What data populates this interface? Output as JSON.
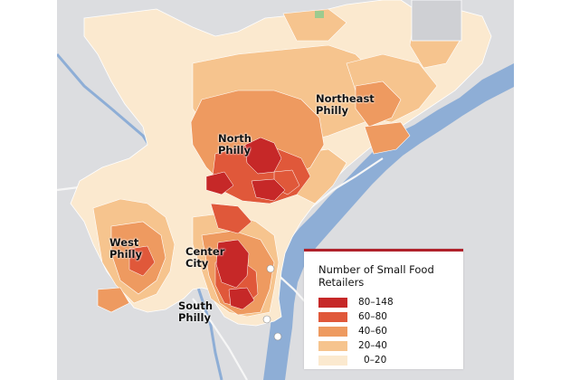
{
  "map": {
    "labels": {
      "north": "North\nPhilly",
      "northeast": "Northeast\nPhilly",
      "west": "West\nPhilly",
      "center": "Center\nCity",
      "south": "South\nPhilly"
    },
    "colors": {
      "background": "#dcdde0",
      "water": "#8eaed6",
      "roads": "#f4f4f4",
      "bin_80_148": "#c62828",
      "bin_60_80": "#e0583a",
      "bin_40_60": "#ee9a60",
      "bin_20_40": "#f6c48e",
      "bin_0_20": "#fbe9cf"
    }
  },
  "legend": {
    "title": "Number of Small Food Retailers",
    "bins": [
      {
        "label": "80–148",
        "color": "#c62828"
      },
      {
        "label": "60–80",
        "color": "#e0583a"
      },
      {
        "label": "40–60",
        "color": "#ee9a60"
      },
      {
        "label": "20–40",
        "color": "#f6c48e"
      },
      {
        "label": "0–20",
        "color": "#fbe9cf"
      }
    ]
  }
}
